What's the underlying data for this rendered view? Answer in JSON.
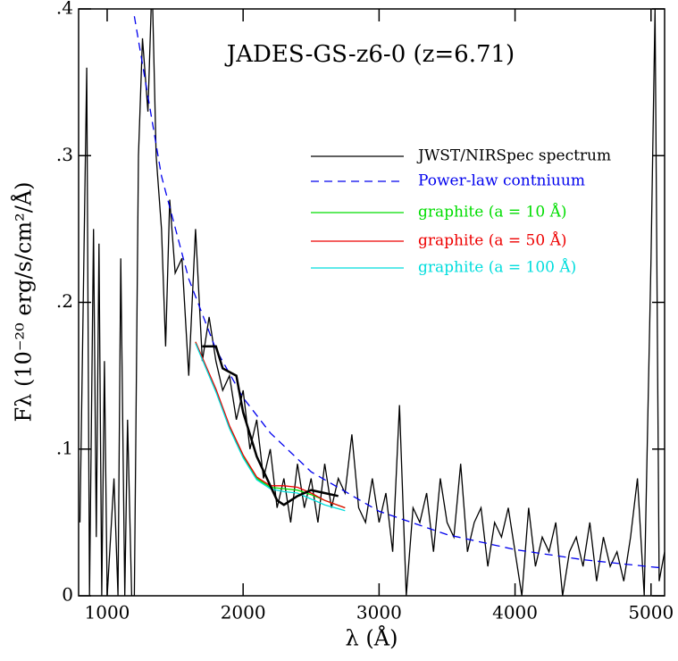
{
  "chart_data": {
    "type": "line",
    "title": "JADES-GS-z6-0 (z=6.71)",
    "xlabel": "λ (Å)",
    "ylabel": "Fλ (10⁻²⁰ erg/s/cm²/Å)",
    "xlim": [
      790,
      5100
    ],
    "ylim": [
      0,
      0.4
    ],
    "xticks": [
      1000,
      2000,
      3000,
      4000,
      5000
    ],
    "yticks": [
      0,
      {
        "value": 0.1,
        "label": ".1"
      },
      {
        "value": 0.2,
        "label": ".2"
      },
      {
        "value": 0.3,
        "label": ".3"
      },
      {
        "value": 0.4,
        "label": ".4"
      }
    ],
    "legend": "upper right",
    "series": [
      {
        "name": "JWST/NIRSpec spectrum",
        "color": "#000000",
        "x": [
          800,
          850,
          870,
          900,
          920,
          940,
          960,
          980,
          1000,
          1050,
          1080,
          1100,
          1130,
          1150,
          1180,
          1200,
          1230,
          1260,
          1300,
          1330,
          1360,
          1400,
          1430,
          1460,
          1500,
          1550,
          1600,
          1650,
          1700,
          1750,
          1800,
          1850,
          1900,
          1950,
          2000,
          2050,
          2100,
          2150,
          2200,
          2250,
          2300,
          2350,
          2400,
          2450,
          2500,
          2550,
          2600,
          2650,
          2700,
          2750,
          2800,
          2850,
          2900,
          2950,
          3000,
          3050,
          3100,
          3150,
          3200,
          3250,
          3300,
          3350,
          3400,
          3450,
          3500,
          3550,
          3600,
          3650,
          3700,
          3750,
          3800,
          3850,
          3900,
          3950,
          4000,
          4050,
          4100,
          4150,
          4200,
          4250,
          4300,
          4350,
          4400,
          4450,
          4500,
          4550,
          4600,
          4650,
          4700,
          4750,
          4800,
          4850,
          4900,
          4950,
          5000,
          5030,
          5060,
          5100
        ],
        "values": [
          0.05,
          0.36,
          0.0,
          0.25,
          0.04,
          0.24,
          0.0,
          0.16,
          0.0,
          0.08,
          0.0,
          0.23,
          0.0,
          0.12,
          0.0,
          0.0,
          0.3,
          0.38,
          0.33,
          0.42,
          0.3,
          0.25,
          0.17,
          0.27,
          0.22,
          0.23,
          0.15,
          0.25,
          0.16,
          0.19,
          0.16,
          0.14,
          0.15,
          0.12,
          0.14,
          0.1,
          0.12,
          0.08,
          0.1,
          0.06,
          0.08,
          0.05,
          0.09,
          0.06,
          0.08,
          0.05,
          0.09,
          0.06,
          0.08,
          0.07,
          0.11,
          0.06,
          0.05,
          0.08,
          0.05,
          0.07,
          0.03,
          0.13,
          0.0,
          0.06,
          0.05,
          0.07,
          0.03,
          0.08,
          0.05,
          0.04,
          0.09,
          0.03,
          0.05,
          0.06,
          0.02,
          0.05,
          0.04,
          0.06,
          0.03,
          0.0,
          0.06,
          0.02,
          0.04,
          0.03,
          0.05,
          0.0,
          0.03,
          0.04,
          0.02,
          0.05,
          0.01,
          0.04,
          0.02,
          0.03,
          0.01,
          0.04,
          0.08,
          0.0,
          0.23,
          0.4,
          0.01,
          0.03
        ]
      },
      {
        "name": "Power-law contniuum",
        "color": "#0000ee",
        "dashed": true,
        "x": [
          1200,
          1400,
          1600,
          1800,
          2000,
          2200,
          2500,
          3000,
          3500,
          4000,
          4500,
          5000,
          5100
        ],
        "values": [
          0.395,
          0.286,
          0.216,
          0.168,
          0.135,
          0.111,
          0.0845,
          0.0576,
          0.0417,
          0.0315,
          0.0246,
          0.0197,
          0.0189
        ]
      },
      {
        "name": "graphite (a = 10 Å)",
        "color": "#00dd00",
        "x": [
          1650,
          1800,
          1900,
          2000,
          2100,
          2200,
          2300,
          2400,
          2500,
          2600,
          2750
        ],
        "values": [
          0.173,
          0.14,
          0.115,
          0.095,
          0.08,
          0.074,
          0.073,
          0.072,
          0.069,
          0.065,
          0.06
        ]
      },
      {
        "name": "graphite (a = 50 Å)",
        "color": "#ee0000",
        "x": [
          1650,
          1800,
          1900,
          2000,
          2100,
          2200,
          2300,
          2400,
          2500,
          2600,
          2750
        ],
        "values": [
          0.173,
          0.141,
          0.116,
          0.096,
          0.081,
          0.075,
          0.075,
          0.074,
          0.07,
          0.065,
          0.06
        ]
      },
      {
        "name": "graphite (a = 100 Å)",
        "color": "#00dddd",
        "x": [
          1650,
          1800,
          1900,
          2000,
          2100,
          2200,
          2300,
          2400,
          2500,
          2600,
          2750
        ],
        "values": [
          0.172,
          0.139,
          0.114,
          0.094,
          0.079,
          0.073,
          0.071,
          0.07,
          0.066,
          0.062,
          0.058
        ]
      },
      {
        "color": "#000000",
        "thick": true,
        "x": [
          1700,
          1800,
          1850,
          1950,
          2000,
          2050,
          2100,
          2150,
          2200,
          2250,
          2300,
          2400,
          2500,
          2600,
          2700
        ],
        "values": [
          0.17,
          0.17,
          0.155,
          0.15,
          0.125,
          0.11,
          0.095,
          0.085,
          0.075,
          0.065,
          0.062,
          0.068,
          0.072,
          0.07,
          0.068
        ]
      }
    ]
  }
}
